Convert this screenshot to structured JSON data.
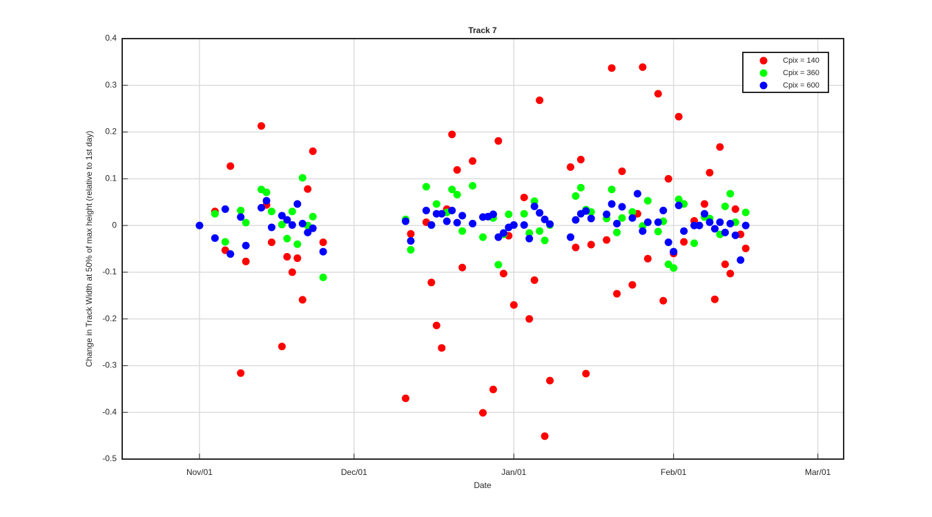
{
  "chart_data": {
    "type": "scatter",
    "title": "Track 7",
    "x_label": "Date",
    "y_label": "Change in Track Width at 50% of max height (relative to 1st day)",
    "xlim": [
      -15,
      125
    ],
    "ylim": [
      -0.5,
      0.4
    ],
    "xticks": [
      {
        "value": 0,
        "label": "Nov/01"
      },
      {
        "value": 30,
        "label": "Dec/01"
      },
      {
        "value": 61,
        "label": "Jan/01"
      },
      {
        "value": 92,
        "label": "Feb/01"
      },
      {
        "value": 120,
        "label": "Mar/01"
      }
    ],
    "yticks": [
      -0.5,
      -0.4,
      -0.3,
      -0.2,
      -0.1,
      0,
      0.1,
      0.2,
      0.3,
      0.4
    ],
    "grid": true,
    "legend": "upper right",
    "series": [
      {
        "name": "Cpix = 140",
        "color": "#ff0000",
        "x": [
          3,
          5,
          6,
          8,
          9,
          12,
          13,
          14,
          16,
          17,
          18,
          19,
          20,
          21,
          22,
          24,
          40,
          41,
          44,
          45,
          46,
          47,
          48,
          49,
          50,
          51,
          53,
          55,
          57,
          58,
          59,
          60,
          61,
          63,
          64,
          65,
          66,
          67,
          68,
          72,
          73,
          74,
          75,
          76,
          79,
          80,
          81,
          82,
          84,
          85,
          86,
          87,
          89,
          90,
          91,
          92,
          93,
          94,
          96,
          98,
          99,
          100,
          101,
          102,
          103,
          104,
          105,
          106
        ],
        "values": [
          0.03,
          -0.053,
          0.127,
          -0.316,
          -0.077,
          0.213,
          0.044,
          -0.036,
          -0.259,
          -0.067,
          -0.1,
          -0.07,
          -0.159,
          0.078,
          0.159,
          -0.036,
          -0.37,
          -0.018,
          0.007,
          -0.122,
          -0.214,
          -0.262,
          0.035,
          0.195,
          0.119,
          -0.09,
          0.138,
          -0.401,
          -0.351,
          0.181,
          -0.103,
          -0.022,
          -0.17,
          0.06,
          -0.2,
          -0.117,
          0.268,
          -0.451,
          -0.332,
          0.125,
          -0.047,
          0.141,
          -0.317,
          -0.041,
          -0.031,
          0.337,
          -0.146,
          0.116,
          -0.127,
          0.025,
          0.339,
          -0.071,
          0.282,
          -0.161,
          0.1,
          -0.06,
          0.233,
          -0.035,
          0.01,
          0.046,
          0.113,
          -0.158,
          0.168,
          -0.083,
          -0.103,
          0.035,
          -0.019,
          -0.049
        ]
      },
      {
        "name": "Cpix = 360",
        "color": "#00ff00",
        "x": [
          3,
          5,
          8,
          9,
          12,
          13,
          14,
          16,
          17,
          18,
          19,
          20,
          21,
          22,
          24,
          40,
          41,
          44,
          45,
          46,
          48,
          49,
          50,
          51,
          53,
          55,
          57,
          58,
          59,
          60,
          63,
          64,
          65,
          66,
          67,
          68,
          73,
          74,
          75,
          76,
          79,
          80,
          81,
          82,
          84,
          86,
          87,
          89,
          90,
          91,
          92,
          93,
          94,
          96,
          98,
          99,
          101,
          102,
          103,
          104,
          106
        ],
        "values": [
          0.025,
          -0.035,
          0.032,
          0.006,
          0.077,
          0.071,
          0.03,
          0.002,
          -0.028,
          0.03,
          -0.04,
          0.102,
          0,
          0.019,
          -0.111,
          0.013,
          -0.052,
          0.083,
          0.001,
          0.046,
          0.028,
          0.077,
          0.066,
          -0.012,
          0.085,
          -0.025,
          0.016,
          -0.084,
          -0.019,
          0.024,
          0.025,
          -0.016,
          0.052,
          -0.012,
          -0.032,
          0.001,
          0.063,
          0.081,
          0.034,
          0.029,
          0.015,
          0.077,
          -0.015,
          0.016,
          0.029,
          -0.001,
          0.053,
          -0.013,
          0.009,
          -0.083,
          -0.091,
          0.056,
          0.046,
          -0.038,
          0.018,
          0.015,
          -0.019,
          0.041,
          0.068,
          0.007,
          0.028
        ]
      },
      {
        "name": "Cpix = 600",
        "color": "#0000ff",
        "x": [
          0,
          3,
          5,
          6,
          8,
          9,
          12,
          13,
          14,
          16,
          17,
          18,
          19,
          20,
          21,
          22,
          24,
          40,
          41,
          44,
          45,
          46,
          47,
          48,
          49,
          50,
          51,
          53,
          55,
          56,
          57,
          58,
          59,
          60,
          61,
          63,
          64,
          65,
          66,
          67,
          68,
          72,
          73,
          74,
          75,
          76,
          79,
          80,
          81,
          82,
          84,
          85,
          86,
          87,
          89,
          90,
          91,
          92,
          93,
          94,
          96,
          97,
          98,
          99,
          100,
          101,
          102,
          103,
          104,
          105,
          106
        ],
        "values": [
          0,
          -0.027,
          0.035,
          -0.061,
          0.018,
          -0.043,
          0.038,
          0.053,
          -0.004,
          0.021,
          0.012,
          0.001,
          0.046,
          0.004,
          -0.015,
          -0.006,
          -0.056,
          0.009,
          -0.033,
          0.032,
          0.001,
          0.025,
          0.025,
          0.009,
          0.032,
          0.006,
          0.021,
          0.004,
          0.018,
          0.019,
          0.024,
          -0.025,
          -0.016,
          -0.004,
          0.001,
          0.001,
          -0.028,
          0.041,
          0.027,
          0.013,
          0.003,
          -0.025,
          0.012,
          0.025,
          0.031,
          0.015,
          0.024,
          0.046,
          0.004,
          0.04,
          0.016,
          0.068,
          -0.012,
          0.007,
          0.007,
          0.032,
          -0.036,
          -0.056,
          0.043,
          -0.012,
          0,
          0,
          0.025,
          0.007,
          -0.007,
          0.007,
          -0.015,
          0.004,
          -0.021,
          -0.074,
          0
        ]
      }
    ]
  }
}
